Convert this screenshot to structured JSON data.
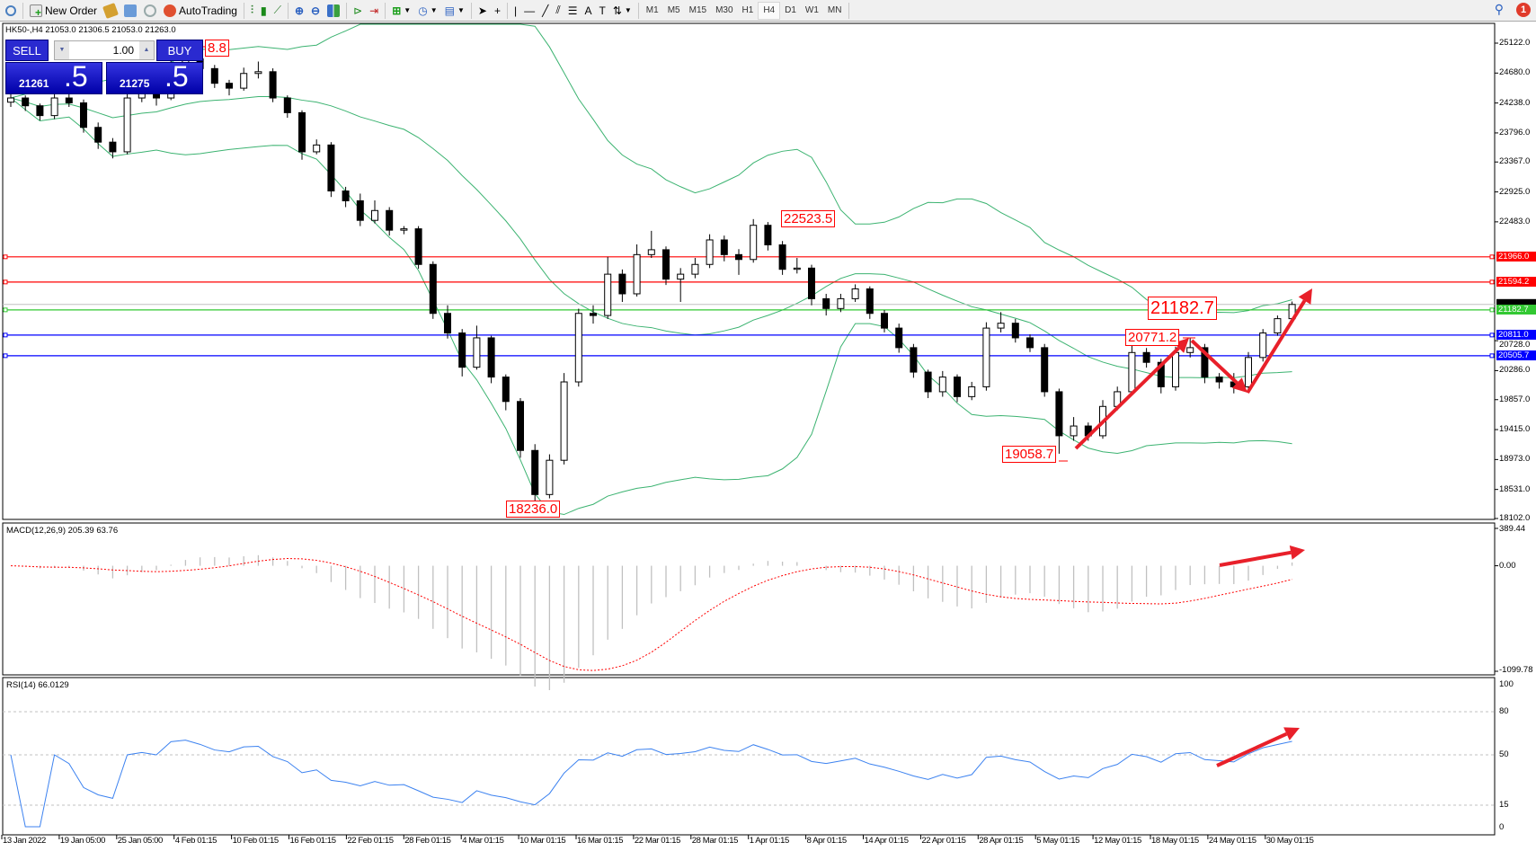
{
  "toolbar": {
    "new_order": "New Order",
    "autotrading": "AutoTrading",
    "timeframes": [
      "M1",
      "M5",
      "M15",
      "M30",
      "H1",
      "H4",
      "D1",
      "W1",
      "MN"
    ],
    "active_timeframe": "H4",
    "notification_count": "1"
  },
  "symbol_info": "HK50-,H4  21053.0 21306.5 21053.0 21263.0",
  "trade_panel": {
    "sell_label": "SELL",
    "buy_label": "BUY",
    "lot": "1.00",
    "sell_price_main": "21261",
    "sell_price_frac": ".5",
    "buy_price_main": "21275",
    "buy_price_frac": ".5"
  },
  "colors": {
    "bull_body": "#ffffff",
    "bear_body": "#000000",
    "bands": "#3cb371",
    "macd_hist": "#c0c0c0",
    "macd_signal": "#ff0000",
    "rsi": "#3c82f0",
    "arrow": "#e8202a"
  },
  "chart_data": [
    {
      "type": "candlestick",
      "symbol": "HK50-",
      "timeframe": "H4",
      "ylim": [
        18102.0,
        25122.0
      ],
      "price_ticks": [
        "25122.0",
        "24680.0",
        "24238.0",
        "23796.0",
        "23367.0",
        "22925.0",
        "22483.0",
        "20728.0",
        "20286.0",
        "19857.0",
        "19415.0",
        "18973.0",
        "18531.0",
        "18102.0"
      ],
      "time_ticks": [
        "13 Jan 2022",
        "19 Jan 05:00",
        "25 Jan 05:00",
        "4 Feb 01:15",
        "10 Feb 01:15",
        "16 Feb 01:15",
        "22 Feb 01:15",
        "28 Feb 01:15",
        "4 Mar 01:15",
        "10 Mar 01:15",
        "16 Mar 01:15",
        "22 Mar 01:15",
        "28 Mar 01:15",
        "1 Apr 01:15",
        "8 Apr 01:15",
        "14 Apr 01:15",
        "22 Apr 01:15",
        "28 Apr 01:15",
        "5 May 01:15",
        "12 May 01:15",
        "18 May 01:15",
        "24 May 01:15",
        "30 May 01:15"
      ],
      "candles_ohlc": [
        [
          24250,
          24380,
          24180,
          24312
        ],
        [
          24312,
          24350,
          24120,
          24197
        ],
        [
          24197,
          24230,
          23980,
          24052
        ],
        [
          24052,
          24390,
          24000,
          24312
        ],
        [
          24312,
          24400,
          24180,
          24240
        ],
        [
          24240,
          24290,
          23800,
          23878
        ],
        [
          23878,
          23950,
          23560,
          23660
        ],
        [
          23660,
          23720,
          23420,
          23517
        ],
        [
          23517,
          24380,
          23480,
          24312
        ],
        [
          24312,
          24460,
          24250,
          24384
        ],
        [
          24384,
          24450,
          24200,
          24312
        ],
        [
          24312,
          24880,
          24280,
          24818
        ],
        [
          24818,
          25060,
          24760,
          24890
        ],
        [
          24890,
          24950,
          24680,
          24746
        ],
        [
          24746,
          24800,
          24460,
          24529
        ],
        [
          24529,
          24580,
          24350,
          24457
        ],
        [
          24457,
          24760,
          24420,
          24674
        ],
        [
          24674,
          24850,
          24600,
          24700
        ],
        [
          24700,
          24750,
          24250,
          24312
        ],
        [
          24312,
          24350,
          24020,
          24095
        ],
        [
          24095,
          24130,
          23400,
          23517
        ],
        [
          23517,
          23700,
          23480,
          23618
        ],
        [
          23618,
          23660,
          22850,
          22939
        ],
        [
          22939,
          23000,
          22700,
          22794
        ],
        [
          22794,
          22900,
          22420,
          22505
        ],
        [
          22505,
          22800,
          22460,
          22650
        ],
        [
          22650,
          22700,
          22280,
          22360
        ],
        [
          22360,
          22420,
          22300,
          22380
        ],
        [
          22380,
          22420,
          21790,
          21854
        ],
        [
          21854,
          21900,
          21050,
          21131
        ],
        [
          21131,
          21250,
          20760,
          20842
        ],
        [
          20842,
          20900,
          20200,
          20336
        ],
        [
          20336,
          20950,
          20300,
          20770
        ],
        [
          20770,
          20800,
          20100,
          20191
        ],
        [
          20191,
          20230,
          19700,
          19830
        ],
        [
          19830,
          19880,
          19000,
          19107
        ],
        [
          19107,
          19200,
          18236,
          18456
        ],
        [
          18456,
          19050,
          18400,
          18962
        ],
        [
          18962,
          20250,
          18900,
          20119
        ],
        [
          20119,
          21200,
          20050,
          21131
        ],
        [
          21131,
          21250,
          20980,
          21100
        ],
        [
          21100,
          21966,
          21050,
          21710
        ],
        [
          21710,
          21780,
          21300,
          21420
        ],
        [
          21420,
          22150,
          21380,
          21999
        ],
        [
          21999,
          22350,
          21950,
          22071
        ],
        [
          22071,
          22120,
          21550,
          21637
        ],
        [
          21637,
          21800,
          21300,
          21710
        ],
        [
          21710,
          21950,
          21650,
          21854
        ],
        [
          21854,
          22300,
          21800,
          22216
        ],
        [
          22216,
          22280,
          21900,
          21999
        ],
        [
          21999,
          22080,
          21700,
          21927
        ],
        [
          21927,
          22523.5,
          21880,
          22432
        ],
        [
          22432,
          22480,
          22060,
          22143
        ],
        [
          22143,
          22200,
          21700,
          21782
        ],
        [
          21782,
          21950,
          21720,
          21800
        ],
        [
          21800,
          21850,
          21250,
          21348
        ],
        [
          21348,
          21420,
          21100,
          21203
        ],
        [
          21203,
          21420,
          21150,
          21348
        ],
        [
          21348,
          21560,
          21300,
          21493
        ],
        [
          21493,
          21530,
          21050,
          21131
        ],
        [
          21131,
          21180,
          20850,
          20914
        ],
        [
          20914,
          20980,
          20550,
          20625
        ],
        [
          20625,
          20680,
          20180,
          20264
        ],
        [
          20264,
          20300,
          19880,
          19974
        ],
        [
          19974,
          20280,
          19900,
          20191
        ],
        [
          20191,
          20230,
          19820,
          19902
        ],
        [
          19902,
          20120,
          19850,
          20047
        ],
        [
          20047,
          21000,
          19990,
          20914
        ],
        [
          20914,
          21150,
          20850,
          20986
        ],
        [
          20986,
          21050,
          20700,
          20770
        ],
        [
          20770,
          20820,
          20560,
          20625
        ],
        [
          20625,
          20680,
          19900,
          19974
        ],
        [
          19974,
          20020,
          19058.7,
          19324
        ],
        [
          19324,
          19600,
          19250,
          19468
        ],
        [
          19468,
          19520,
          19250,
          19324
        ],
        [
          19324,
          19850,
          19280,
          19757
        ],
        [
          19757,
          20050,
          19700,
          19974
        ],
        [
          19974,
          20650,
          19920,
          20553
        ],
        [
          20553,
          20620,
          20330,
          20408
        ],
        [
          20408,
          20460,
          19950,
          20047
        ],
        [
          20047,
          20640,
          19990,
          20553
        ],
        [
          20553,
          20771.2,
          20480,
          20625
        ],
        [
          20625,
          20680,
          20100,
          20191
        ],
        [
          20191,
          20250,
          20020,
          20119
        ],
        [
          20119,
          20250,
          19950,
          20047
        ],
        [
          20047,
          20560,
          20000,
          20480
        ],
        [
          20480,
          20900,
          20420,
          20842
        ],
        [
          20842,
          21100,
          20800,
          21053
        ],
        [
          21053,
          21306.5,
          21053,
          21263
        ]
      ],
      "current_price": {
        "value": "21263.0",
        "color": "#000000"
      },
      "levels": [
        {
          "label": "21966.0",
          "price": 21966.0,
          "color": "#ff0000"
        },
        {
          "label": "21594.2",
          "price": 21594.2,
          "color": "#ff0000"
        },
        {
          "label": "21182.7",
          "price": 21182.7,
          "color": "#32c832"
        },
        {
          "label": "20811.0",
          "price": 20811.0,
          "color": "#0000ff"
        },
        {
          "label": "20505.7",
          "price": 20505.7,
          "color": "#0000ff"
        }
      ],
      "annotations": [
        {
          "text": "8.8"
        },
        {
          "text": "22523.5"
        },
        {
          "text": "18236.0"
        },
        {
          "text": "19058.7"
        },
        {
          "text": "20771.2"
        },
        {
          "text": "21182.7"
        }
      ]
    },
    {
      "type": "bar",
      "title": "MACD(12,26,9) 205.39 63.76",
      "ylim": [
        -1099.78,
        389.44
      ],
      "ticks": [
        "389.44",
        "0.00",
        "-1099.78"
      ]
    },
    {
      "type": "line",
      "title": "RSI(14) 66.0129",
      "ylim": [
        0,
        100
      ],
      "levels": [
        80,
        50,
        15
      ],
      "ticks": [
        "100",
        "80",
        "50",
        "15",
        "0"
      ]
    }
  ]
}
